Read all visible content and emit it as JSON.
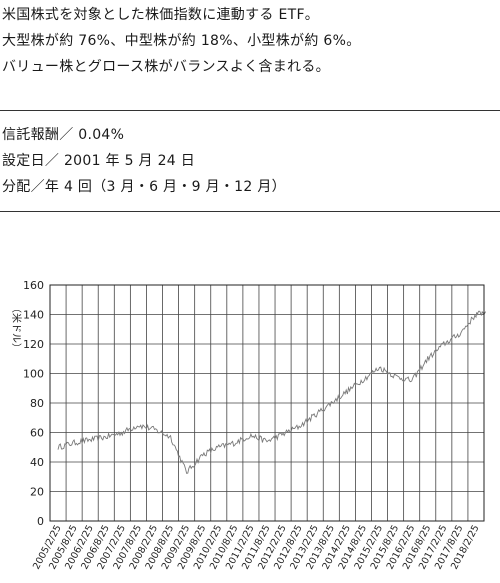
{
  "description": {
    "lines": [
      "米国株式を対象とした株価指数に連動する ETF。",
      "大型株が約 76%、中型株が約 18%、小型株が約 6%。",
      "バリュー株とグロース株がバランスよく含まれる。"
    ]
  },
  "info": {
    "lines": [
      "信託報酬／ 0.04%",
      "設定日／ 2001 年 5 月 24 日",
      "分配／年 4 回（3 月・6 月・9 月・12 月）"
    ]
  },
  "chart_data": {
    "type": "line",
    "ylabel": "（米ドル）",
    "ylim": [
      0,
      160
    ],
    "yticks": [
      0,
      20,
      40,
      60,
      80,
      100,
      120,
      140,
      160
    ],
    "categories": [
      "2005/2/25",
      "2005/8/25",
      "2006/2/25",
      "2006/8/25",
      "2007/2/25",
      "2007/8/25",
      "2008/2/25",
      "2008/8/25",
      "2009/2/25",
      "2009/8/25",
      "2010/2/25",
      "2010/8/25",
      "2011/2/25",
      "2011/8/25",
      "2012/2/25",
      "2012/8/25",
      "2013/2/25",
      "2013/8/25",
      "2014/2/25",
      "2014/8/25",
      "2015/2/25",
      "2015/8/25",
      "2016/2/25",
      "2016/8/25",
      "2017/2/25",
      "2017/8/25",
      "2018/2/25"
    ],
    "grid": true,
    "series": [
      {
        "color": "#7a7a7a",
        "x": [
          0,
          1,
          2,
          3,
          4,
          5,
          6,
          7,
          8,
          9,
          10,
          11,
          12,
          13,
          14,
          15,
          16,
          17,
          18,
          19,
          20,
          21,
          22,
          23,
          24,
          25,
          26,
          26.6
        ],
        "values": [
          50,
          53,
          55,
          57,
          60,
          65,
          62,
          57,
          33,
          45,
          50,
          53,
          58,
          54,
          59,
          64,
          72,
          80,
          88,
          96,
          104,
          98,
          95,
          110,
          120,
          127,
          140,
          142
        ]
      }
    ]
  }
}
